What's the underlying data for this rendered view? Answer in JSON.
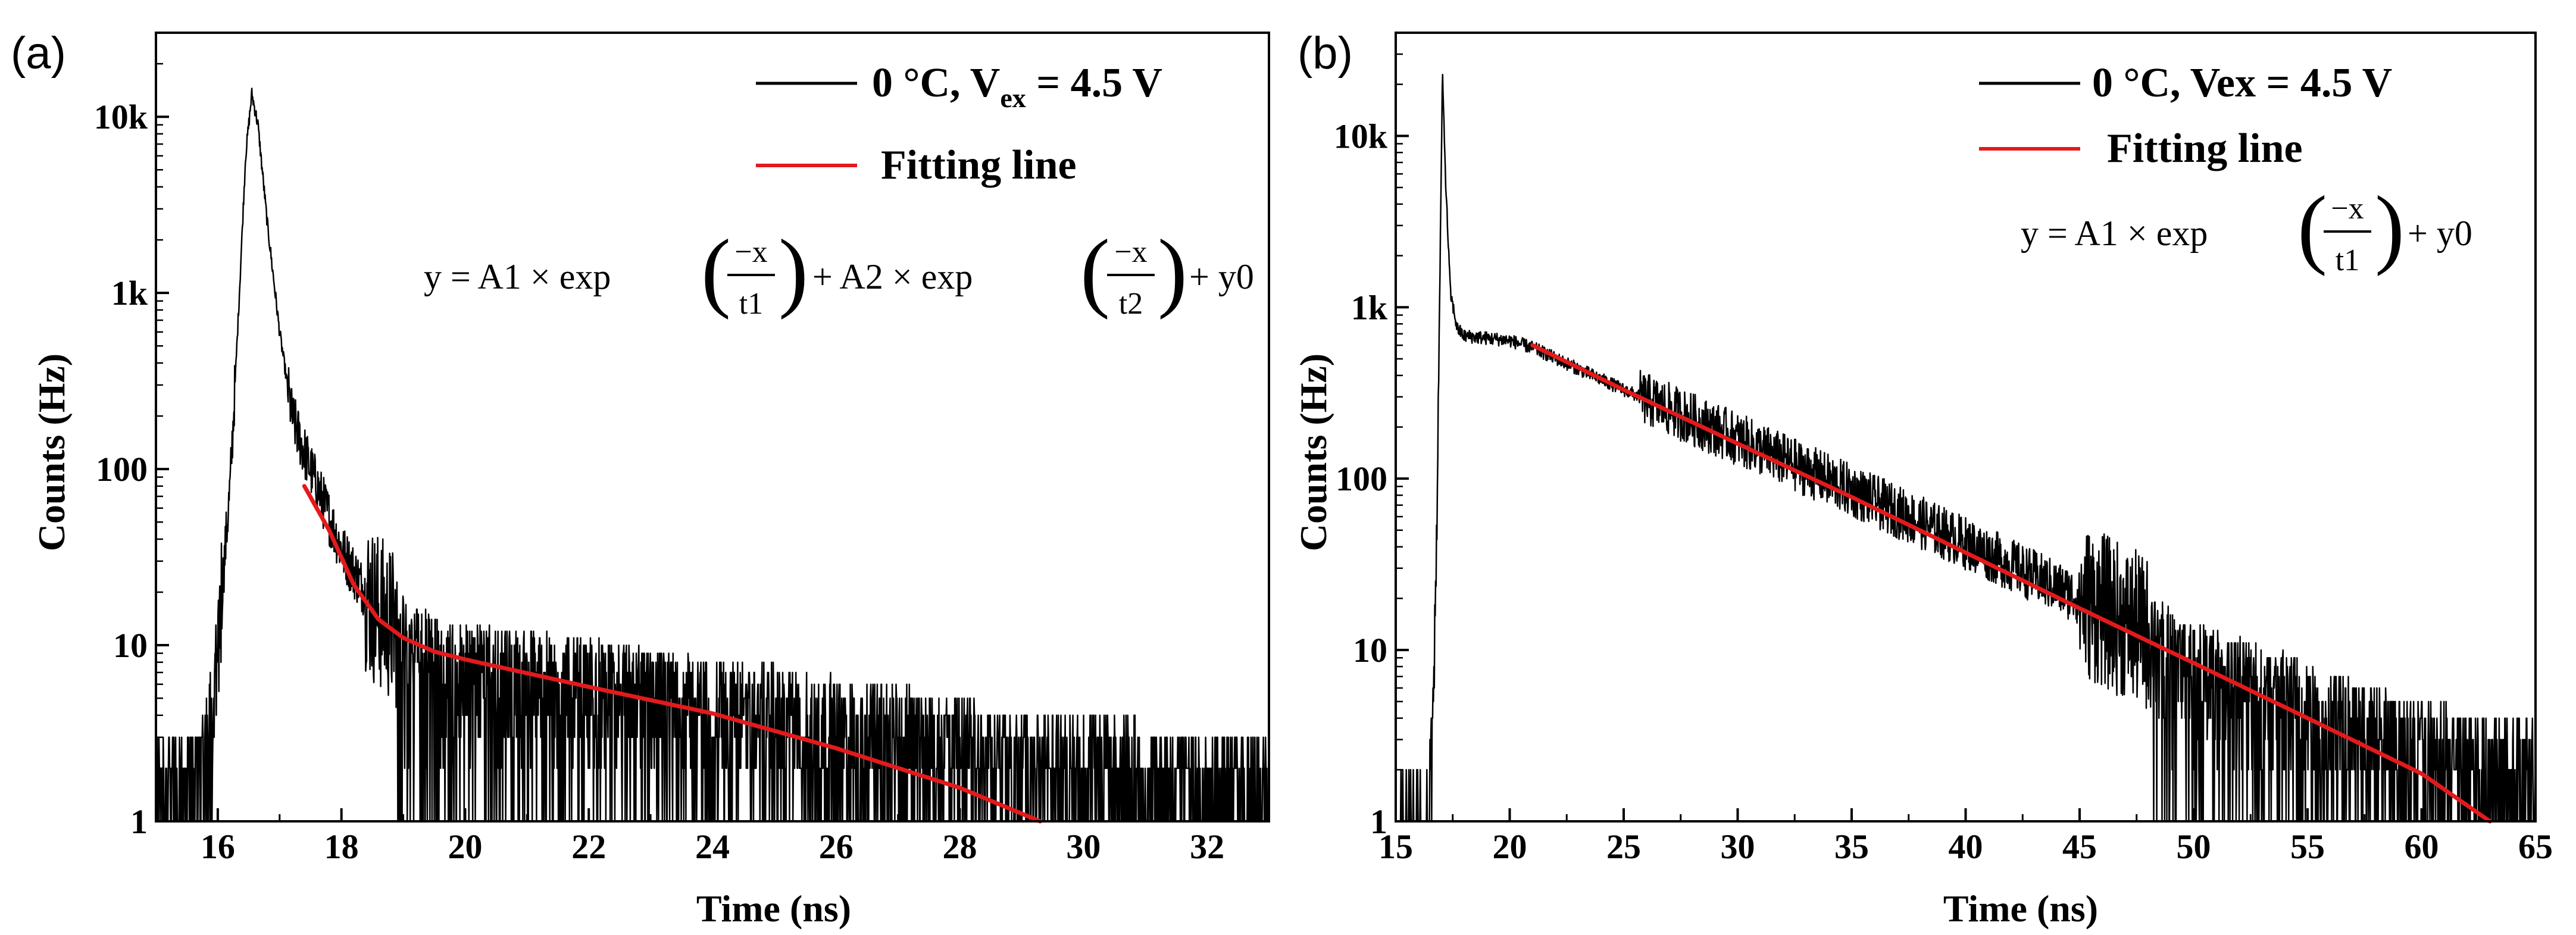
{
  "figure": {
    "panels": [
      "(a)",
      "(b)"
    ]
  },
  "chart_data": [
    {
      "type": "line",
      "panel": "(a)",
      "xlabel": "Time (ns)",
      "ylabel": "Counts (Hz)",
      "yscale": "log",
      "xlim": [
        15,
        33
      ],
      "ylim": [
        1,
        30000
      ],
      "x_ticks": [
        16,
        18,
        20,
        22,
        24,
        26,
        28,
        30,
        32
      ],
      "y_ticks": [
        1,
        10,
        100,
        1000,
        10000
      ],
      "y_tick_labels": [
        "1",
        "10",
        "100",
        "1k",
        "10k"
      ],
      "legend": {
        "position": "top-right",
        "entries": [
          {
            "label_main": "0 °C, V",
            "label_sub": "ex",
            "label_tail": " = 4.5 V",
            "color": "#000000"
          },
          {
            "label": "Fitting line",
            "color": "#e31a1c"
          }
        ]
      },
      "equation": {
        "pre": "y = A1 × exp",
        "frac1_num": "−x",
        "frac1_den": "t1",
        "mid": "+ A2 × exp",
        "frac2_num": "−x",
        "frac2_den": "t2",
        "post": "+ y0"
      },
      "series": [
        {
          "name": "0 °C, Vex = 4.5 V",
          "color": "#000000",
          "kind": "measured",
          "points": [
            [
              15.0,
              2
            ],
            [
              15.6,
              2
            ],
            [
              15.8,
              3
            ],
            [
              16.0,
              10
            ],
            [
              16.2,
              80
            ],
            [
              16.35,
              1000
            ],
            [
              16.45,
              6000
            ],
            [
              16.55,
              13500
            ],
            [
              16.65,
              9000
            ],
            [
              16.8,
              2500
            ],
            [
              17.0,
              600
            ],
            [
              17.2,
              200
            ],
            [
              17.35,
              140
            ],
            [
              17.5,
              100
            ],
            [
              18.0,
              35
            ],
            [
              18.5,
              17
            ],
            [
              19.0,
              11
            ],
            [
              19.5,
              9
            ],
            [
              20.0,
              8
            ],
            [
              22.0,
              6.5
            ],
            [
              24.0,
              5
            ],
            [
              26.0,
              4
            ],
            [
              28.0,
              3
            ],
            [
              30.0,
              2.3
            ],
            [
              32.0,
              2
            ],
            [
              33.0,
              2
            ]
          ]
        },
        {
          "name": "Fitting line",
          "color": "#e31a1c",
          "kind": "fit",
          "points": [
            [
              17.4,
              80
            ],
            [
              17.8,
              45
            ],
            [
              18.2,
              22
            ],
            [
              18.6,
              14
            ],
            [
              19.0,
              11
            ],
            [
              19.5,
              9.2
            ],
            [
              20.0,
              8.3
            ],
            [
              22.0,
              5.8
            ],
            [
              24.0,
              4.1
            ],
            [
              26.0,
              2.6
            ],
            [
              28.0,
              1.55
            ],
            [
              29.3,
              1.0
            ]
          ]
        }
      ]
    },
    {
      "type": "line",
      "panel": "(b)",
      "xlabel": "Time (ns)",
      "ylabel": "Counts (Hz)",
      "yscale": "log",
      "xlim": [
        15,
        65
      ],
      "ylim": [
        1,
        40000
      ],
      "x_ticks": [
        15,
        20,
        25,
        30,
        35,
        40,
        45,
        50,
        55,
        60,
        65
      ],
      "y_ticks": [
        1,
        10,
        100,
        1000,
        10000
      ],
      "y_tick_labels": [
        "1",
        "10",
        "100",
        "1k",
        "10k"
      ],
      "legend": {
        "position": "top-right",
        "entries": [
          {
            "label": "0 °C, Vex = 4.5 V",
            "color": "#000000"
          },
          {
            "label": "Fitting line",
            "color": "#e31a1c"
          }
        ]
      },
      "equation": {
        "pre": "y = A1 × exp",
        "frac1_num": "−x",
        "frac1_den": "t1",
        "post": "+ y0"
      },
      "series": [
        {
          "name": "0 °C, Vex = 4.5 V",
          "color": "#000000",
          "kind": "measured",
          "points": [
            [
              15.0,
              1
            ],
            [
              16.3,
              1
            ],
            [
              16.6,
              3
            ],
            [
              16.8,
              50
            ],
            [
              16.95,
              2000
            ],
            [
              17.05,
              23000
            ],
            [
              17.2,
              5000
            ],
            [
              17.4,
              1200
            ],
            [
              17.7,
              750
            ],
            [
              18.0,
              680
            ],
            [
              19.0,
              660
            ],
            [
              20.0,
              640
            ],
            [
              21.0,
              580
            ],
            [
              25.0,
              330
            ],
            [
              30.0,
              170
            ],
            [
              35.0,
              85
            ],
            [
              40.0,
              42
            ],
            [
              45.0,
              20
            ],
            [
              50.0,
              9
            ],
            [
              55.0,
              5
            ],
            [
              60.0,
              3
            ],
            [
              65.0,
              2.5
            ]
          ]
        },
        {
          "name": "Fitting line",
          "color": "#e31a1c",
          "kind": "fit",
          "points": [
            [
              21.0,
              600
            ],
            [
              25.0,
              330
            ],
            [
              30.0,
              160
            ],
            [
              35.0,
              78
            ],
            [
              40.0,
              37
            ],
            [
              45.0,
              17.5
            ],
            [
              50.0,
              8.4
            ],
            [
              55.0,
              4.0
            ],
            [
              60.0,
              1.9
            ],
            [
              63.0,
              1.0
            ]
          ]
        }
      ]
    }
  ]
}
